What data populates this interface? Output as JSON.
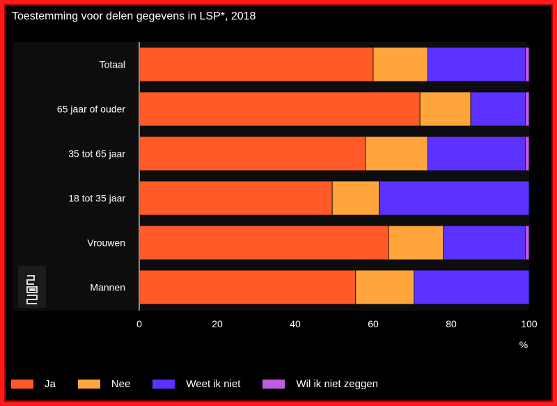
{
  "chart_data": {
    "type": "bar",
    "orientation": "horizontal",
    "stacked": true,
    "title": "Toestemming voor delen gegevens in LSP*, 2018",
    "xlabel": "%",
    "ylabel": "",
    "xlim": [
      0,
      100
    ],
    "xticks": [
      0,
      20,
      40,
      60,
      80,
      100
    ],
    "categories": [
      "Totaal",
      "65 jaar of ouder",
      "35 tot 65 jaar",
      "18 tot 35 jaar",
      "Vrouwen",
      "Mannen"
    ],
    "series": [
      {
        "name": "Ja",
        "color": "#ff5a28",
        "values": [
          60,
          72,
          58,
          49.5,
          64,
          55.5
        ]
      },
      {
        "name": "Nee",
        "color": "#ffa53c",
        "values": [
          14,
          13,
          16,
          12,
          14,
          15
        ]
      },
      {
        "name": "Weet ik niet",
        "color": "#5b32ff",
        "values": [
          25,
          14,
          25,
          38.5,
          21,
          29.5
        ]
      },
      {
        "name": "Wil ik niet zeggen",
        "color": "#c05ce0",
        "values": [
          1,
          1,
          1,
          0,
          1,
          0
        ]
      }
    ],
    "legend_position": "bottom"
  },
  "colors": {
    "background": "#000000",
    "panel": "#0d0d0d",
    "axis": "#8a8a8a",
    "text": "#ffffff",
    "frame": "#ff1a1a"
  }
}
